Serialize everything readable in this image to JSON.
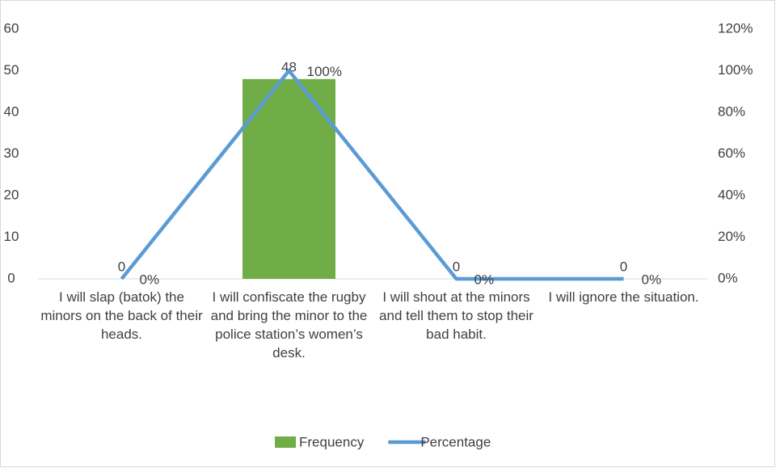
{
  "chart_data": {
    "type": "combo",
    "categories": [
      "I will slap (batok) the minors on the back of their heads.",
      "I will confiscate the rugby and bring the minor to the police station’s women’s desk.",
      "I will shout at the minors and tell them to stop their bad habit.",
      "I will ignore the situation."
    ],
    "series": [
      {
        "name": "Frequency",
        "type": "bar",
        "color": "#70ad47",
        "values": [
          0,
          48,
          0,
          0
        ]
      },
      {
        "name": "Percentage",
        "type": "line",
        "axis": "y2",
        "color": "#5b9bd5",
        "values": [
          0,
          100,
          0,
          0
        ],
        "value_labels": [
          "0%",
          "100%",
          "0%",
          "0%"
        ]
      }
    ],
    "ylim": [
      0,
      60
    ],
    "yticks": [
      0,
      10,
      20,
      30,
      40,
      50,
      60
    ],
    "y2lim": [
      0,
      120
    ],
    "y2ticks": [
      {
        "value": 0,
        "label": "0%"
      },
      {
        "value": 20,
        "label": "20%"
      },
      {
        "value": 40,
        "label": "40%"
      },
      {
        "value": 60,
        "label": "60%"
      },
      {
        "value": 80,
        "label": "80%"
      },
      {
        "value": 100,
        "label": "100%"
      },
      {
        "value": 120,
        "label": "120%"
      }
    ],
    "grid": false,
    "legend": "bottom"
  }
}
